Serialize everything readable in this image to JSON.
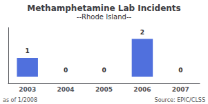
{
  "chart_data": {
    "type": "bar",
    "title": "Methamphetamine Lab Incidents",
    "subtitle": "--Rhode Island--",
    "categories": [
      "2003",
      "2004",
      "2005",
      "2006",
      "2007"
    ],
    "values": [
      1,
      0,
      0,
      2,
      0
    ],
    "ylim": [
      -0.35,
      2.6
    ],
    "yticks": [],
    "tick_labels": "x",
    "data_labels": true,
    "grid": false,
    "annotations": [
      "as of 1/2008",
      "Source: EPIC/CLSS"
    ]
  }
}
